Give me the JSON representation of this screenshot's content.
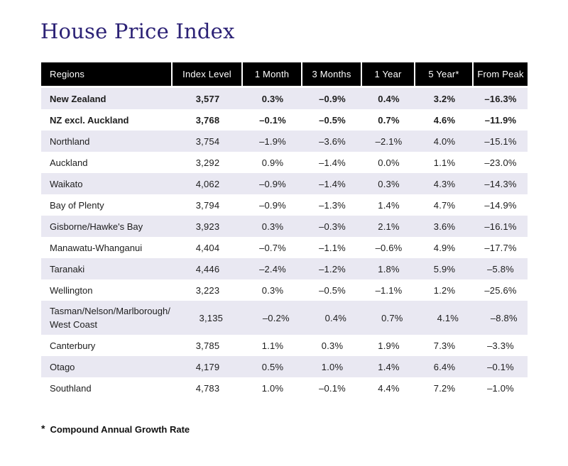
{
  "chart_data": {
    "type": "table",
    "title": "House Price Index",
    "columns": [
      "Regions",
      "Index Level",
      "1 Month",
      "3 Months",
      "1 Year",
      "5 Year*",
      "From Peak"
    ],
    "rows": [
      {
        "region": "New Zealand",
        "bold": true,
        "index_level": "3,577",
        "m1": "0.3%",
        "m3": "–0.9%",
        "y1": "0.4%",
        "y5": "3.2%",
        "from_peak": "–16.3%"
      },
      {
        "region": "NZ excl. Auckland",
        "bold": true,
        "index_level": "3,768",
        "m1": "–0.1%",
        "m3": "–0.5%",
        "y1": "0.7%",
        "y5": "4.6%",
        "from_peak": "–11.9%"
      },
      {
        "region": "Northland",
        "bold": false,
        "index_level": "3,754",
        "m1": "–1.9%",
        "m3": "–3.6%",
        "y1": "–2.1%",
        "y5": "4.0%",
        "from_peak": "–15.1%"
      },
      {
        "region": "Auckland",
        "bold": false,
        "index_level": "3,292",
        "m1": "0.9%",
        "m3": "–1.4%",
        "y1": "0.0%",
        "y5": "1.1%",
        "from_peak": "–23.0%"
      },
      {
        "region": "Waikato",
        "bold": false,
        "index_level": "4,062",
        "m1": "–0.9%",
        "m3": "–1.4%",
        "y1": "0.3%",
        "y5": "4.3%",
        "from_peak": "–14.3%"
      },
      {
        "region": "Bay of Plenty",
        "bold": false,
        "index_level": "3,794",
        "m1": "–0.9%",
        "m3": "–1.3%",
        "y1": "1.4%",
        "y5": "4.7%",
        "from_peak": "–14.9%"
      },
      {
        "region": "Gisborne/Hawke's Bay",
        "bold": false,
        "index_level": "3,923",
        "m1": "0.3%",
        "m3": "–0.3%",
        "y1": "2.1%",
        "y5": "3.6%",
        "from_peak": "–16.1%"
      },
      {
        "region": "Manawatu-Whanganui",
        "bold": false,
        "index_level": "4,404",
        "m1": "–0.7%",
        "m3": "–1.1%",
        "y1": "–0.6%",
        "y5": "4.9%",
        "from_peak": "–17.7%"
      },
      {
        "region": "Taranaki",
        "bold": false,
        "index_level": "4,446",
        "m1": "–2.4%",
        "m3": "–1.2%",
        "y1": "1.8%",
        "y5": "5.9%",
        "from_peak": "–5.8%"
      },
      {
        "region": "Wellington",
        "bold": false,
        "index_level": "3,223",
        "m1": "0.3%",
        "m3": "–0.5%",
        "y1": "–1.1%",
        "y5": "1.2%",
        "from_peak": "–25.6%"
      },
      {
        "region": "Tasman/Nelson/Marlborough/\nWest Coast",
        "bold": false,
        "index_level": "3,135",
        "m1": "–0.2%",
        "m3": "0.4%",
        "y1": "0.7%",
        "y5": "4.1%",
        "from_peak": "–8.8%"
      },
      {
        "region": "Canterbury",
        "bold": false,
        "index_level": "3,785",
        "m1": "1.1%",
        "m3": "0.3%",
        "y1": "1.9%",
        "y5": "7.3%",
        "from_peak": "–3.3%"
      },
      {
        "region": "Otago",
        "bold": false,
        "index_level": "4,179",
        "m1": "0.5%",
        "m3": "1.0%",
        "y1": "1.4%",
        "y5": "6.4%",
        "from_peak": "–0.1%"
      },
      {
        "region": "Southland",
        "bold": false,
        "index_level": "4,783",
        "m1": "1.0%",
        "m3": "–0.1%",
        "y1": "4.4%",
        "y5": "7.2%",
        "from_peak": "–1.0%"
      }
    ],
    "footnote": {
      "symbol": "*",
      "text": "Compound Annual Growth Rate"
    },
    "layout_hints": {
      "header_position": "top",
      "grid": "row-striped",
      "stripe_rows": "odd"
    },
    "colors": {
      "title_text": "#2c2276",
      "header_bg": "#000000",
      "header_text": "#ffffff",
      "row_alt_bg": "#e9e8f2",
      "body_text": "#1d1d1d"
    }
  }
}
